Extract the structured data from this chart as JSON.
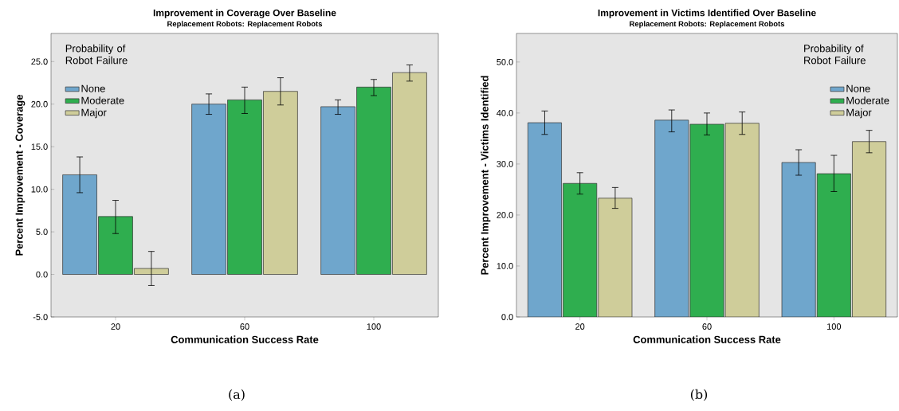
{
  "chart_data": [
    {
      "type": "bar",
      "title": "Improvement in Coverage Over Baseline",
      "subtitle": "Replacement Robots: Replacement Robots",
      "xlabel": "Communication Success Rate",
      "ylabel": "Percent Improvement - Coverage",
      "legend_title": "Probability of Robot Failure",
      "legend": "top left",
      "categories": [
        "20",
        "60",
        "100"
      ],
      "series": [
        {
          "name": "None",
          "color": "#6fa6cc",
          "values": [
            11.7,
            20.0,
            19.7
          ],
          "errors": [
            [
              9.6,
              13.8
            ],
            [
              18.8,
              21.2
            ],
            [
              18.8,
              20.5
            ]
          ]
        },
        {
          "name": "Moderate",
          "color": "#2fae4f",
          "values": [
            6.8,
            20.5,
            22.0
          ],
          "errors": [
            [
              4.8,
              8.7
            ],
            [
              18.9,
              22.0
            ],
            [
              21.0,
              22.9
            ]
          ]
        },
        {
          "name": "Major",
          "color": "#cfcd9a",
          "values": [
            0.7,
            21.5,
            23.7
          ],
          "errors": [
            [
              -1.3,
              2.7
            ],
            [
              19.9,
              23.1
            ],
            [
              22.7,
              24.6
            ]
          ]
        }
      ],
      "ylim": [
        -5,
        28.3
      ],
      "yticks": [
        {
          "value": -5,
          "label": "-5.0"
        },
        {
          "value": 0,
          "label": "0.0"
        },
        {
          "value": 5,
          "label": "5.0"
        },
        {
          "value": 10,
          "label": "10.0"
        },
        {
          "value": 15,
          "label": "15.0"
        },
        {
          "value": 20,
          "label": "20.0"
        },
        {
          "value": 25,
          "label": "25.0"
        }
      ],
      "annotations": [
        "(a)"
      ]
    },
    {
      "type": "bar",
      "title": "Improvement in Victims Identified Over Baseline",
      "subtitle": "Replacement Robots: Replacement Robots",
      "xlabel": "Communication Success Rate",
      "ylabel": "Percent Improvement - Victims Identified",
      "legend_title": "Probability of Robot Failure",
      "legend": "top right",
      "categories": [
        "20",
        "60",
        "100"
      ],
      "series": [
        {
          "name": "None",
          "color": "#6fa6cc",
          "values": [
            38.1,
            38.6,
            30.3
          ],
          "errors": [
            [
              35.8,
              40.4
            ],
            [
              36.3,
              40.6
            ],
            [
              27.8,
              32.8
            ]
          ]
        },
        {
          "name": "Moderate",
          "color": "#2fae4f",
          "values": [
            26.2,
            37.8,
            28.1
          ],
          "errors": [
            [
              24.1,
              28.3
            ],
            [
              35.7,
              40.0
            ],
            [
              24.6,
              31.7
            ]
          ]
        },
        {
          "name": "Major",
          "color": "#cfcd9a",
          "values": [
            23.3,
            38.0,
            34.4
          ],
          "errors": [
            [
              21.3,
              25.4
            ],
            [
              35.8,
              40.2
            ],
            [
              32.2,
              36.6
            ]
          ]
        }
      ],
      "ylim": [
        0,
        55.6
      ],
      "yticks": [
        {
          "value": 0,
          "label": "0.0"
        },
        {
          "value": 10,
          "label": "10.0"
        },
        {
          "value": 20,
          "label": "20.0"
        },
        {
          "value": 30,
          "label": "30.0"
        },
        {
          "value": 40,
          "label": "40.0"
        },
        {
          "value": 50,
          "label": "50.0"
        }
      ],
      "annotations": [
        "(b)"
      ]
    }
  ]
}
